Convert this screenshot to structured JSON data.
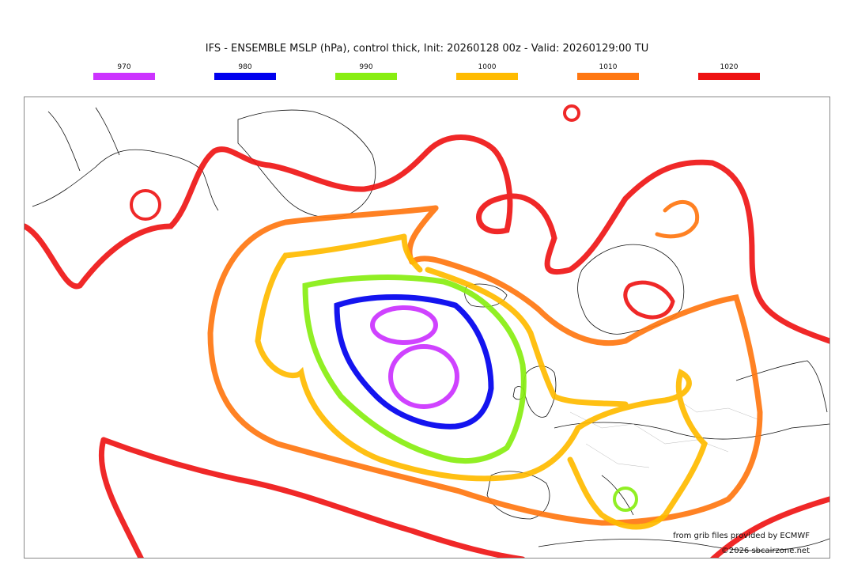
{
  "title": "IFS - ENSEMBLE MSLP (hPa), control thick, Init: 20260128 00z - Valid: 20260129:00 TU",
  "legend": [
    {
      "label": "970",
      "color": "#cc33ff"
    },
    {
      "label": "980",
      "color": "#0000ee"
    },
    {
      "label": "990",
      "color": "#88ee11"
    },
    {
      "label": "1000",
      "color": "#ffbb00"
    },
    {
      "label": "1010",
      "color": "#ff7711"
    },
    {
      "label": "1020",
      "color": "#ee1111"
    }
  ],
  "credits": {
    "source": "from grib files provided by ECMWF",
    "copyright": "©2026 sbcairzone.net"
  }
}
